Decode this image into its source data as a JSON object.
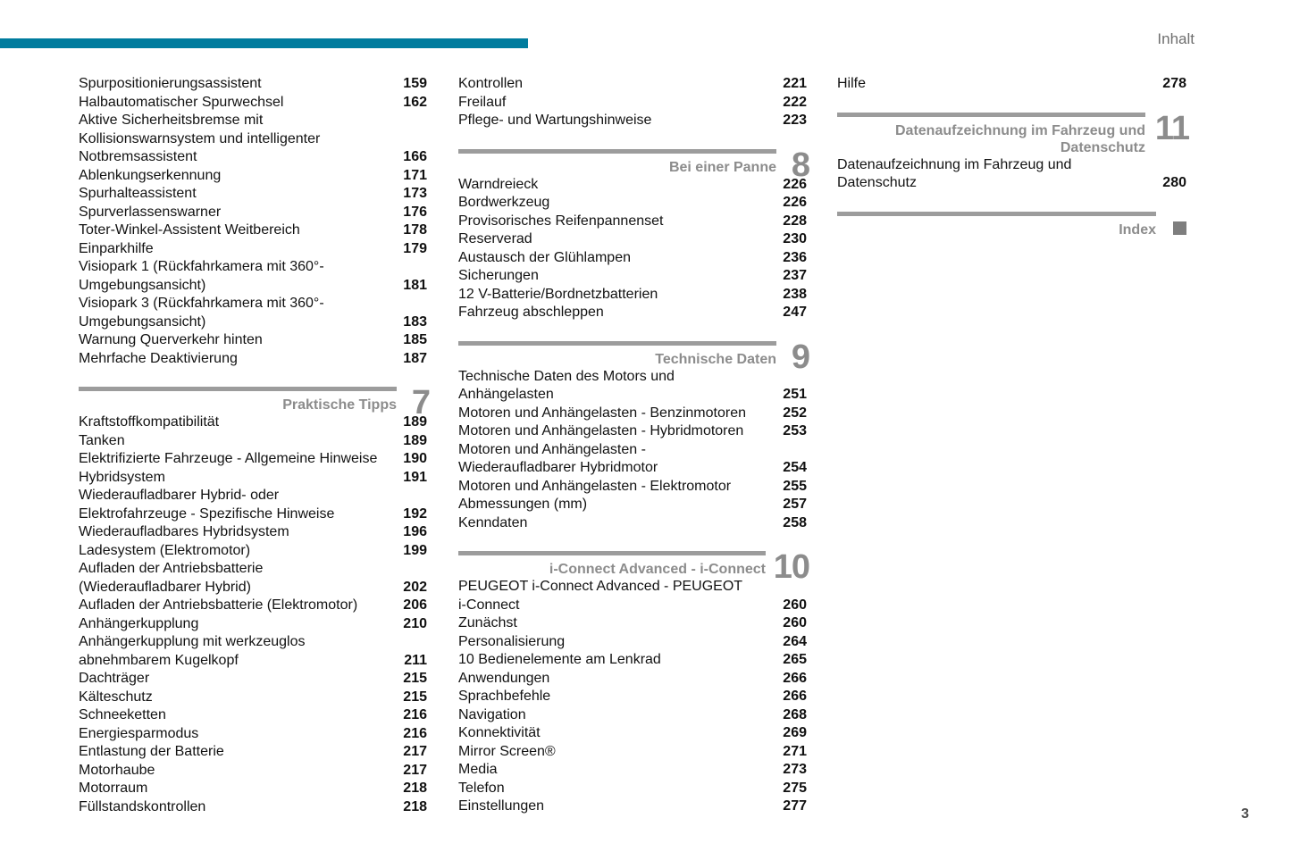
{
  "page": {
    "header_label": "Inhalt",
    "page_number": "3",
    "accent_color": "#007C9E",
    "section_color": "#8C8C8C"
  },
  "columns": [
    {
      "blocks": [
        {
          "type": "entries",
          "items": [
            {
              "t": "Spurpositionierungsassistent",
              "p": "159"
            },
            {
              "t": "Halbautomatischer Spurwechsel",
              "p": "162"
            },
            {
              "t": "Aktive Sicherheitsbremse mit\nKollisionswarnsystem und intelligenter\nNotbremsassistent",
              "p": "166"
            },
            {
              "t": "Ablenkungserkennung",
              "p": "171"
            },
            {
              "t": "Spurhalteassistent",
              "p": "173"
            },
            {
              "t": "Spurverlassenswarner",
              "p": "176"
            },
            {
              "t": "Toter-Winkel-Assistent Weitbereich",
              "p": "178"
            },
            {
              "t": "Einparkhilfe",
              "p": "179"
            },
            {
              "t": "Visiopark 1 (Rückfahrkamera mit 360°-\nUmgebungsansicht)",
              "p": "181"
            },
            {
              "t": "Visiopark 3 (Rückfahrkamera mit 360°-\nUmgebungsansicht)",
              "p": "183"
            },
            {
              "t": "Warnung Querverkehr hinten",
              "p": "185"
            },
            {
              "t": "Mehrfache Deaktivierung",
              "p": "187"
            }
          ]
        },
        {
          "type": "section",
          "title": "Praktische Tipps",
          "number": "7"
        },
        {
          "type": "entries",
          "items": [
            {
              "t": "Kraftstoffkompatibilität",
              "p": "189"
            },
            {
              "t": "Tanken",
              "p": "189"
            },
            {
              "t": "Elektrifizierte Fahrzeuge - Allgemeine Hinweise",
              "p": "190"
            },
            {
              "t": "Hybridsystem",
              "p": "191"
            },
            {
              "t": "Wiederaufladbarer Hybrid- oder\nElektrofahrzeuge - Spezifische Hinweise",
              "p": "192"
            },
            {
              "t": "Wiederaufladbares Hybridsystem",
              "p": "196"
            },
            {
              "t": "Ladesystem (Elektromotor)",
              "p": "199"
            },
            {
              "t": "Aufladen der Antriebsbatterie\n(Wiederaufladbarer Hybrid)",
              "p": "202"
            },
            {
              "t": "Aufladen der Antriebsbatterie (Elektromotor)",
              "p": "206"
            },
            {
              "t": "Anhängerkupplung",
              "p": "210"
            },
            {
              "t": "Anhängerkupplung mit werkzeuglos\nabnehmbarem Kugelkopf",
              "p": "211"
            },
            {
              "t": "Dachträger",
              "p": "215"
            },
            {
              "t": "Kälteschutz",
              "p": "215"
            },
            {
              "t": "Schneeketten",
              "p": "216"
            },
            {
              "t": "Energiesparmodus",
              "p": "216"
            },
            {
              "t": "Entlastung der Batterie",
              "p": "217"
            },
            {
              "t": "Motorhaube",
              "p": "217"
            },
            {
              "t": "Motorraum",
              "p": "218"
            },
            {
              "t": "Füllstandskontrollen",
              "p": "218"
            }
          ]
        }
      ]
    },
    {
      "blocks": [
        {
          "type": "entries",
          "items": [
            {
              "t": "Kontrollen",
              "p": "221"
            },
            {
              "t": "Freilauf",
              "p": "222"
            },
            {
              "t": "Pflege- und Wartungshinweise",
              "p": "223"
            }
          ]
        },
        {
          "type": "section",
          "title": "Bei einer Panne",
          "number": "8"
        },
        {
          "type": "entries",
          "items": [
            {
              "t": "Warndreieck",
              "p": "226"
            },
            {
              "t": "Bordwerkzeug",
              "p": "226"
            },
            {
              "t": "Provisorisches Reifenpannenset",
              "p": "228"
            },
            {
              "t": "Reserverad",
              "p": "230"
            },
            {
              "t": "Austausch der Glühlampen",
              "p": "236"
            },
            {
              "t": "Sicherungen",
              "p": "237"
            },
            {
              "t": "12 V-Batterie/Bordnetzbatterien",
              "p": "238"
            },
            {
              "t": "Fahrzeug abschleppen",
              "p": "247"
            }
          ]
        },
        {
          "type": "section",
          "title": "Technische Daten",
          "number": "9"
        },
        {
          "type": "entries",
          "items": [
            {
              "t": "Technische Daten des Motors und\nAnhängelasten",
              "p": "251"
            },
            {
              "t": "Motoren und Anhängelasten - Benzinmotoren",
              "p": "252"
            },
            {
              "t": "Motoren und Anhängelasten - Hybridmotoren",
              "p": "253"
            },
            {
              "t": "Motoren und Anhängelasten -\nWiederaufladbarer Hybridmotor",
              "p": "254"
            },
            {
              "t": "Motoren und Anhängelasten - Elektromotor",
              "p": "255"
            },
            {
              "t": "Abmessungen (mm)",
              "p": "257"
            },
            {
              "t": "Kenndaten",
              "p": "258"
            }
          ]
        },
        {
          "type": "section",
          "title": "i-Connect Advanced - i-Connect",
          "number": "10"
        },
        {
          "type": "entries",
          "items": [
            {
              "t": "PEUGEOT i-Connect Advanced - PEUGEOT\ni-Connect",
              "p": "260"
            },
            {
              "t": "Zunächst",
              "p": "260"
            },
            {
              "t": "Personalisierung",
              "p": "264"
            },
            {
              "t": "10 Bedienelemente am Lenkrad",
              "p": "265"
            },
            {
              "t": "Anwendungen",
              "p": "266"
            },
            {
              "t": "Sprachbefehle",
              "p": "266"
            },
            {
              "t": "Navigation",
              "p": "268"
            },
            {
              "t": "Konnektivität",
              "p": "269"
            },
            {
              "t": "Mirror Screen®",
              "p": "271"
            },
            {
              "t": "Media",
              "p": "273"
            },
            {
              "t": "Telefon",
              "p": "275"
            },
            {
              "t": "Einstellungen",
              "p": "277"
            }
          ]
        }
      ]
    },
    {
      "blocks": [
        {
          "type": "entries",
          "items": [
            {
              "t": "Hilfe",
              "p": "278"
            }
          ]
        },
        {
          "type": "section",
          "title": "Datenaufzeichnung im Fahrzeug und\nDatenschutz",
          "number": "11"
        },
        {
          "type": "entries",
          "items": [
            {
              "t": "Datenaufzeichnung im Fahrzeug und\nDatenschutz",
              "p": "280"
            }
          ]
        },
        {
          "type": "section",
          "title": "Index",
          "number": "",
          "marker": "square"
        }
      ]
    }
  ]
}
